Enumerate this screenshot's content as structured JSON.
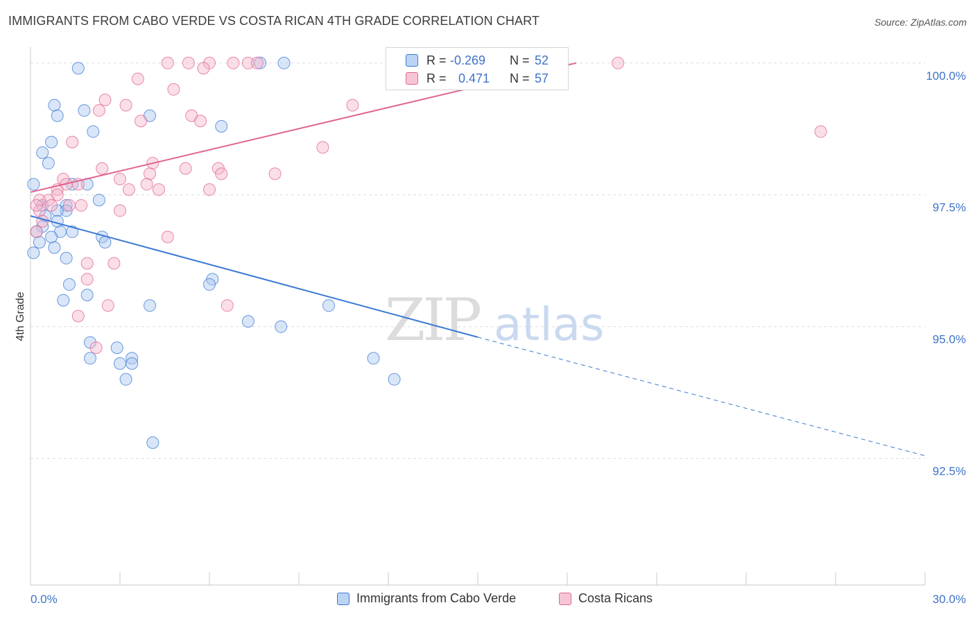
{
  "title": "IMMIGRANTS FROM CABO VERDE VS COSTA RICAN 4TH GRADE CORRELATION CHART",
  "source": "Source: ZipAtlas.com",
  "watermark": {
    "zip": "ZIP",
    "atlas": "atlas"
  },
  "colors": {
    "blue": "#3a78d4",
    "blue_fill": "#aac8f0",
    "pink": "#e0648e",
    "pink_fill": "#f5b6cb",
    "tick": "#3f73c8",
    "grid": "#dddddd"
  },
  "stats": [
    {
      "r_label": "R =",
      "r_value": "-0.269",
      "n_label": "N =",
      "n_value": "52"
    },
    {
      "r_label": "R =",
      "r_value": "0.471",
      "n_label": "N =",
      "n_value": "57"
    }
  ],
  "legend": [
    "Immigrants from Cabo Verde",
    "Costa Ricans"
  ],
  "chart_data": {
    "type": "scatter",
    "title": "IMMIGRANTS FROM CABO VERDE VS COSTA RICAN 4TH GRADE CORRELATION CHART",
    "xlabel": "",
    "ylabel": "4th Grade",
    "xlim": [
      0,
      30
    ],
    "ylim": [
      90.1,
      100.3
    ],
    "x_tick_labels": [
      "0.0%",
      "30.0%"
    ],
    "y_ticks": [
      92.5,
      95.0,
      97.5,
      100.0
    ],
    "y_tick_labels": [
      "92.5%",
      "95.0%",
      "97.5%",
      "100.0%"
    ],
    "grid": "horizontal dashed",
    "legend_position": "bottom",
    "series": [
      {
        "name": "Immigrants from Cabo Verde",
        "color": "#3a78d4",
        "trend": {
          "x": [
            0,
            15
          ],
          "y": [
            97.1,
            94.8
          ],
          "dashed_to": [
            30,
            92.55
          ]
        },
        "points": [
          [
            1.6,
            99.9
          ],
          [
            7.7,
            100.0
          ],
          [
            8.5,
            100.0
          ],
          [
            0.8,
            99.2
          ],
          [
            1.8,
            99.1
          ],
          [
            0.9,
            99.0
          ],
          [
            4.0,
            99.0
          ],
          [
            6.4,
            98.8
          ],
          [
            2.1,
            98.7
          ],
          [
            0.7,
            98.5
          ],
          [
            0.4,
            98.3
          ],
          [
            0.6,
            98.1
          ],
          [
            0.1,
            97.7
          ],
          [
            1.4,
            97.7
          ],
          [
            1.9,
            97.7
          ],
          [
            2.3,
            97.4
          ],
          [
            0.4,
            97.3
          ],
          [
            1.2,
            97.3
          ],
          [
            1.2,
            97.2
          ],
          [
            0.9,
            97.2
          ],
          [
            0.5,
            97.1
          ],
          [
            0.4,
            96.9
          ],
          [
            0.2,
            96.8
          ],
          [
            1.0,
            96.8
          ],
          [
            1.4,
            96.8
          ],
          [
            0.7,
            96.7
          ],
          [
            2.4,
            96.7
          ],
          [
            2.5,
            96.6
          ],
          [
            0.3,
            96.6
          ],
          [
            0.8,
            96.5
          ],
          [
            0.1,
            96.4
          ],
          [
            1.2,
            96.3
          ],
          [
            6.1,
            95.9
          ],
          [
            6.0,
            95.8
          ],
          [
            1.3,
            95.8
          ],
          [
            1.9,
            95.6
          ],
          [
            1.1,
            95.5
          ],
          [
            4.0,
            95.4
          ],
          [
            10.0,
            95.4
          ],
          [
            7.3,
            95.1
          ],
          [
            8.4,
            95.0
          ],
          [
            2.0,
            94.7
          ],
          [
            2.9,
            94.6
          ],
          [
            3.4,
            94.4
          ],
          [
            2.0,
            94.4
          ],
          [
            11.5,
            94.4
          ],
          [
            3.0,
            94.3
          ],
          [
            3.4,
            94.3
          ],
          [
            3.2,
            94.0
          ],
          [
            12.2,
            94.0
          ],
          [
            4.1,
            92.8
          ],
          [
            0.9,
            97.0
          ]
        ]
      },
      {
        "name": "Costa Ricans",
        "color": "#e0648e",
        "trend": {
          "x": [
            0,
            18.3
          ],
          "y": [
            97.55,
            100.0
          ]
        },
        "points": [
          [
            4.6,
            100.0
          ],
          [
            5.3,
            100.0
          ],
          [
            6.0,
            100.0
          ],
          [
            5.8,
            99.9
          ],
          [
            6.8,
            100.0
          ],
          [
            7.3,
            100.0
          ],
          [
            7.6,
            100.0
          ],
          [
            12.5,
            100.0
          ],
          [
            17.0,
            100.0
          ],
          [
            19.7,
            100.0
          ],
          [
            3.6,
            99.7
          ],
          [
            4.8,
            99.5
          ],
          [
            2.5,
            99.3
          ],
          [
            3.2,
            99.2
          ],
          [
            10.8,
            99.2
          ],
          [
            2.3,
            99.1
          ],
          [
            5.4,
            99.0
          ],
          [
            5.7,
            98.9
          ],
          [
            3.7,
            98.9
          ],
          [
            26.5,
            98.7
          ],
          [
            1.4,
            98.5
          ],
          [
            9.8,
            98.4
          ],
          [
            4.1,
            98.1
          ],
          [
            2.4,
            98.0
          ],
          [
            5.2,
            98.0
          ],
          [
            6.3,
            98.0
          ],
          [
            6.4,
            97.9
          ],
          [
            8.2,
            97.9
          ],
          [
            4.0,
            97.9
          ],
          [
            1.1,
            97.8
          ],
          [
            3.0,
            97.8
          ],
          [
            3.9,
            97.7
          ],
          [
            0.9,
            97.6
          ],
          [
            1.6,
            97.7
          ],
          [
            4.3,
            97.6
          ],
          [
            3.3,
            97.6
          ],
          [
            0.9,
            97.5
          ],
          [
            0.6,
            97.4
          ],
          [
            0.3,
            97.4
          ],
          [
            0.7,
            97.3
          ],
          [
            1.3,
            97.3
          ],
          [
            1.7,
            97.3
          ],
          [
            0.3,
            97.2
          ],
          [
            3.0,
            97.2
          ],
          [
            0.4,
            97.0
          ],
          [
            0.2,
            96.8
          ],
          [
            4.6,
            96.7
          ],
          [
            1.9,
            96.2
          ],
          [
            2.8,
            96.2
          ],
          [
            1.9,
            95.9
          ],
          [
            6.6,
            95.4
          ],
          [
            2.6,
            95.4
          ],
          [
            1.6,
            95.2
          ],
          [
            2.2,
            94.6
          ],
          [
            0.2,
            97.3
          ],
          [
            6.0,
            97.6
          ],
          [
            1.2,
            97.7
          ]
        ]
      }
    ]
  }
}
